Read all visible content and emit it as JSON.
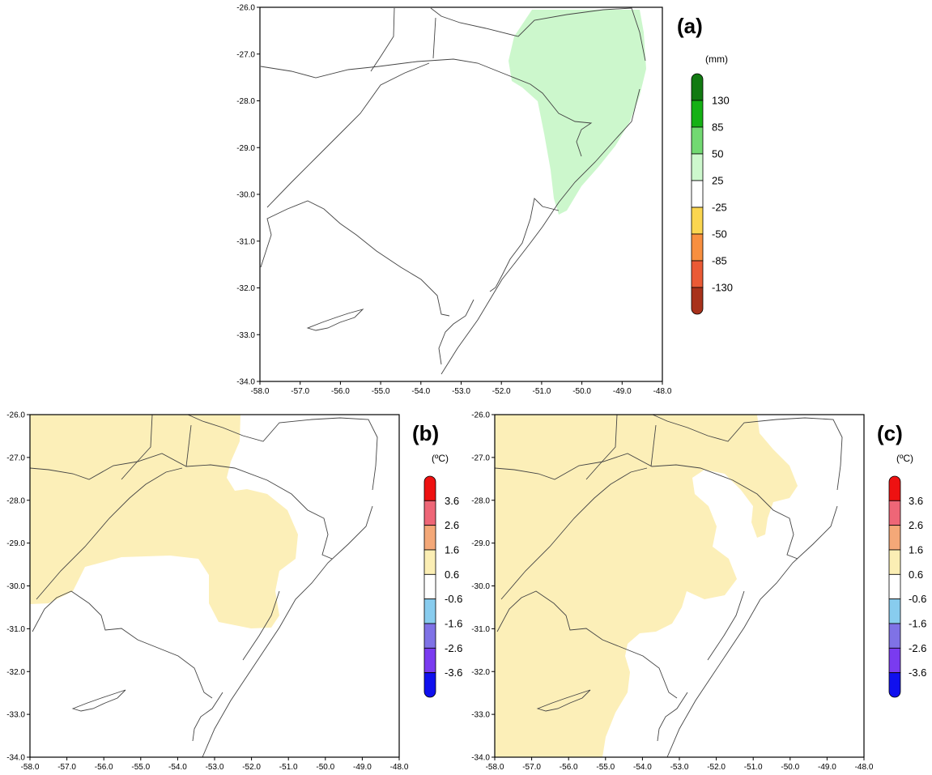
{
  "panels": [
    {
      "id": "a",
      "letter": "(a)",
      "unit": "(mm)",
      "lon_ticks": [
        "-58.0",
        "-57.0",
        "-56.0",
        "-55.0",
        "-54.0",
        "-53.0",
        "-52.0",
        "-51.0",
        "-50.0",
        "-49.0",
        "-48.0"
      ],
      "lat_ticks": [
        "-26.0",
        "-27.0",
        "-28.0",
        "-29.0",
        "-30.0",
        "-31.0",
        "-32.0",
        "-33.0",
        "-34.0"
      ],
      "colorbar": {
        "colors": [
          "#127a12",
          "#15b115",
          "#72d972",
          "#cdf8cd",
          "#ffffff",
          "#fbd650",
          "#f88f3f",
          "#ea5a35",
          "#a8321b"
        ],
        "labels": [
          "130",
          "85",
          "50",
          "25",
          "-25",
          "-50",
          "-85",
          "-130"
        ]
      }
    },
    {
      "id": "b",
      "letter": "(b)",
      "unit": "(ºC)",
      "lon_ticks": [
        "-58.0",
        "-57.0",
        "-56.0",
        "-55.0",
        "-54.0",
        "-53.0",
        "-52.0",
        "-51.0",
        "-50.0",
        "-49.0",
        "-48.0"
      ],
      "lat_ticks": [
        "-26.0",
        "-27.0",
        "-28.0",
        "-29.0",
        "-30.0",
        "-31.0",
        "-32.0",
        "-33.0",
        "-34.0"
      ],
      "colorbar": {
        "colors": [
          "#ee1111",
          "#ee6677",
          "#f4a878",
          "#fbeeb4",
          "#ffffff",
          "#88ccee",
          "#7f72e6",
          "#7a3bf0",
          "#1010ee"
        ],
        "labels": [
          "3.6",
          "2.6",
          "1.6",
          "0.6",
          "-0.6",
          "-1.6",
          "-2.6",
          "-3.6"
        ]
      }
    },
    {
      "id": "c",
      "letter": "(c)",
      "unit": "(ºC)",
      "lon_ticks": [
        "-58.0",
        "-57.0",
        "-56.0",
        "-55.0",
        "-54.0",
        "-53.0",
        "-52.0",
        "-51.0",
        "-50.0",
        "-49.0",
        "-48.0"
      ],
      "lat_ticks": [
        "-26.0",
        "-27.0",
        "-28.0",
        "-29.0",
        "-30.0",
        "-31.0",
        "-32.0",
        "-33.0",
        "-34.0"
      ],
      "colorbar": {
        "colors": [
          "#ee1111",
          "#ee6677",
          "#f4a878",
          "#fbeeb4",
          "#ffffff",
          "#88ccee",
          "#7f72e6",
          "#7a3bf0",
          "#1010ee"
        ],
        "labels": [
          "3.6",
          "2.6",
          "1.6",
          "0.6",
          "-0.6",
          "-1.6",
          "-2.6",
          "-3.6"
        ]
      }
    }
  ],
  "colors": {
    "precip_anomaly_fill": "#ccf7cc",
    "temp_anomaly_fill": "#fcefb8",
    "coastline": "#444444"
  }
}
